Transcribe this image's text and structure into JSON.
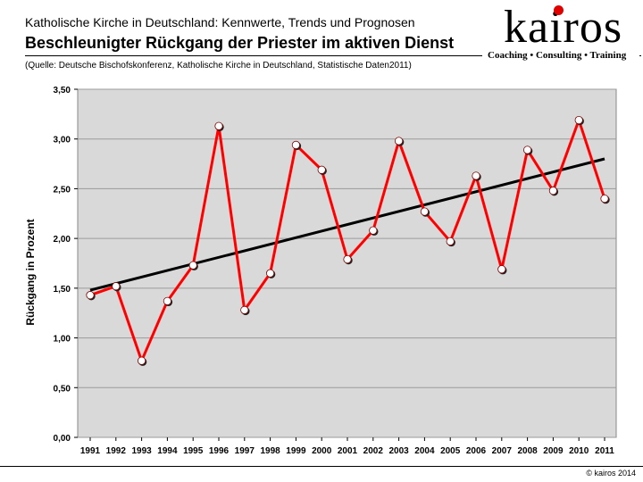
{
  "header": {
    "supertitle": "Katholische Kirche in Deutschland: Kennwerte, Trends und Prognosen",
    "title": "Beschleunigter Rückgang der Priester im aktiven Dienst",
    "source": "(Quelle: Deutsche Bischofskonferenz, Katholische Kirche in Deutschland, Statistische Daten2011)"
  },
  "logo": {
    "word": "kairos",
    "tagline": "Coaching • Consulting • Training"
  },
  "footer": {
    "copyright": "© kairos 2014"
  },
  "colors": {
    "series": "#ff0000",
    "trend": "#000000",
    "plot_background": "#d9d9d9",
    "logo_dot": "#e00000"
  },
  "chart_data": {
    "type": "line",
    "title": "",
    "xlabel": "",
    "ylabel": "Rückgang in Prozent",
    "ylim": [
      0,
      3.5
    ],
    "ytick_step": 0.5,
    "ytick_labels": [
      "0,00",
      "0,50",
      "1,00",
      "1,50",
      "2,00",
      "2,50",
      "3,00",
      "3,50"
    ],
    "categories": [
      "1991",
      "1992",
      "1993",
      "1994",
      "1995",
      "1996",
      "1997",
      "1998",
      "1999",
      "2000",
      "2001",
      "2002",
      "2003",
      "2004",
      "2005",
      "2006",
      "2007",
      "2008",
      "2009",
      "2010",
      "2011"
    ],
    "series": [
      {
        "values": [
          1.43,
          1.52,
          0.77,
          1.37,
          1.73,
          3.13,
          1.28,
          1.65,
          2.94,
          2.69,
          1.79,
          2.08,
          2.98,
          2.27,
          1.97,
          2.63,
          1.69,
          2.89,
          2.48,
          3.19,
          2.4
        ],
        "markers": true
      }
    ],
    "trendline": {
      "type": "linear",
      "start": 1.48,
      "end": 2.8
    },
    "grid": "horizontal",
    "legend": "none"
  }
}
